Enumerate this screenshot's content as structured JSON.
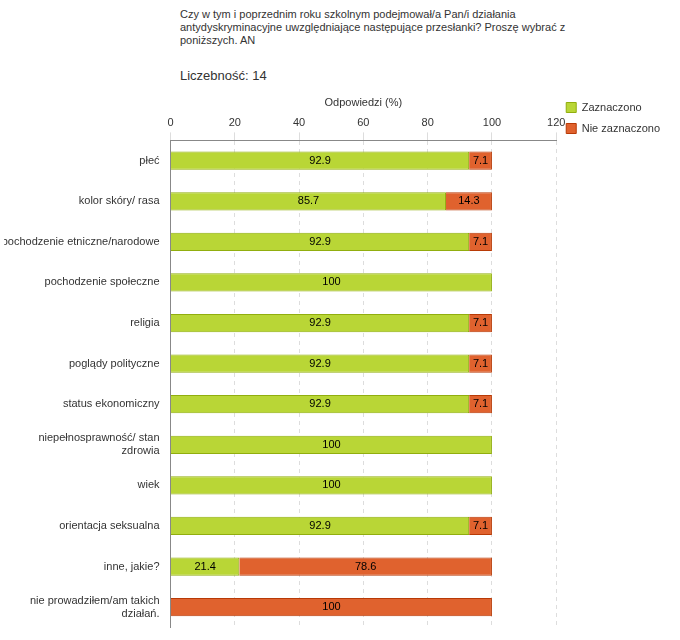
{
  "chart_data": {
    "type": "bar",
    "orientation": "horizontal",
    "stacked": true,
    "title": "Czy w tym i poprzednim roku szkolnym podejmował/a Pan/i działania antydyskryminacyjne uwzględniające następujące przesłanki? Proszę wybrać z poniższych. AN",
    "subtitle": "Liczebność: 14",
    "x_label": "Odpowiedzi (%)",
    "categories": [
      "płeć",
      "kolor skóry/ rasa",
      "pochodzenie etniczne/narodowe",
      "pochodzenie społeczne",
      "religia",
      "poglądy polityczne",
      "status ekonomiczny",
      "niepełnosprawność/ stan zdrowia",
      "wiek",
      "orientacja seksualna",
      "inne, jakie?",
      "nie prowadziłem/am takich działań."
    ],
    "series": [
      {
        "name": "Zaznaczono",
        "color": "#b9d636",
        "values": [
          92.9,
          85.7,
          92.9,
          100,
          92.9,
          92.9,
          92.9,
          100,
          100,
          92.9,
          21.4,
          0
        ]
      },
      {
        "name": "Nie zaznaczono",
        "color": "#e0622e",
        "values": [
          7.1,
          14.3,
          7.1,
          0,
          7.1,
          7.1,
          7.1,
          0,
          0,
          7.1,
          78.6,
          100
        ]
      }
    ],
    "xlim": [
      0,
      120
    ],
    "xticks": [
      0,
      20,
      40,
      60,
      80,
      100,
      120
    ],
    "grid": true,
    "data_labels": true,
    "legend": "right"
  }
}
